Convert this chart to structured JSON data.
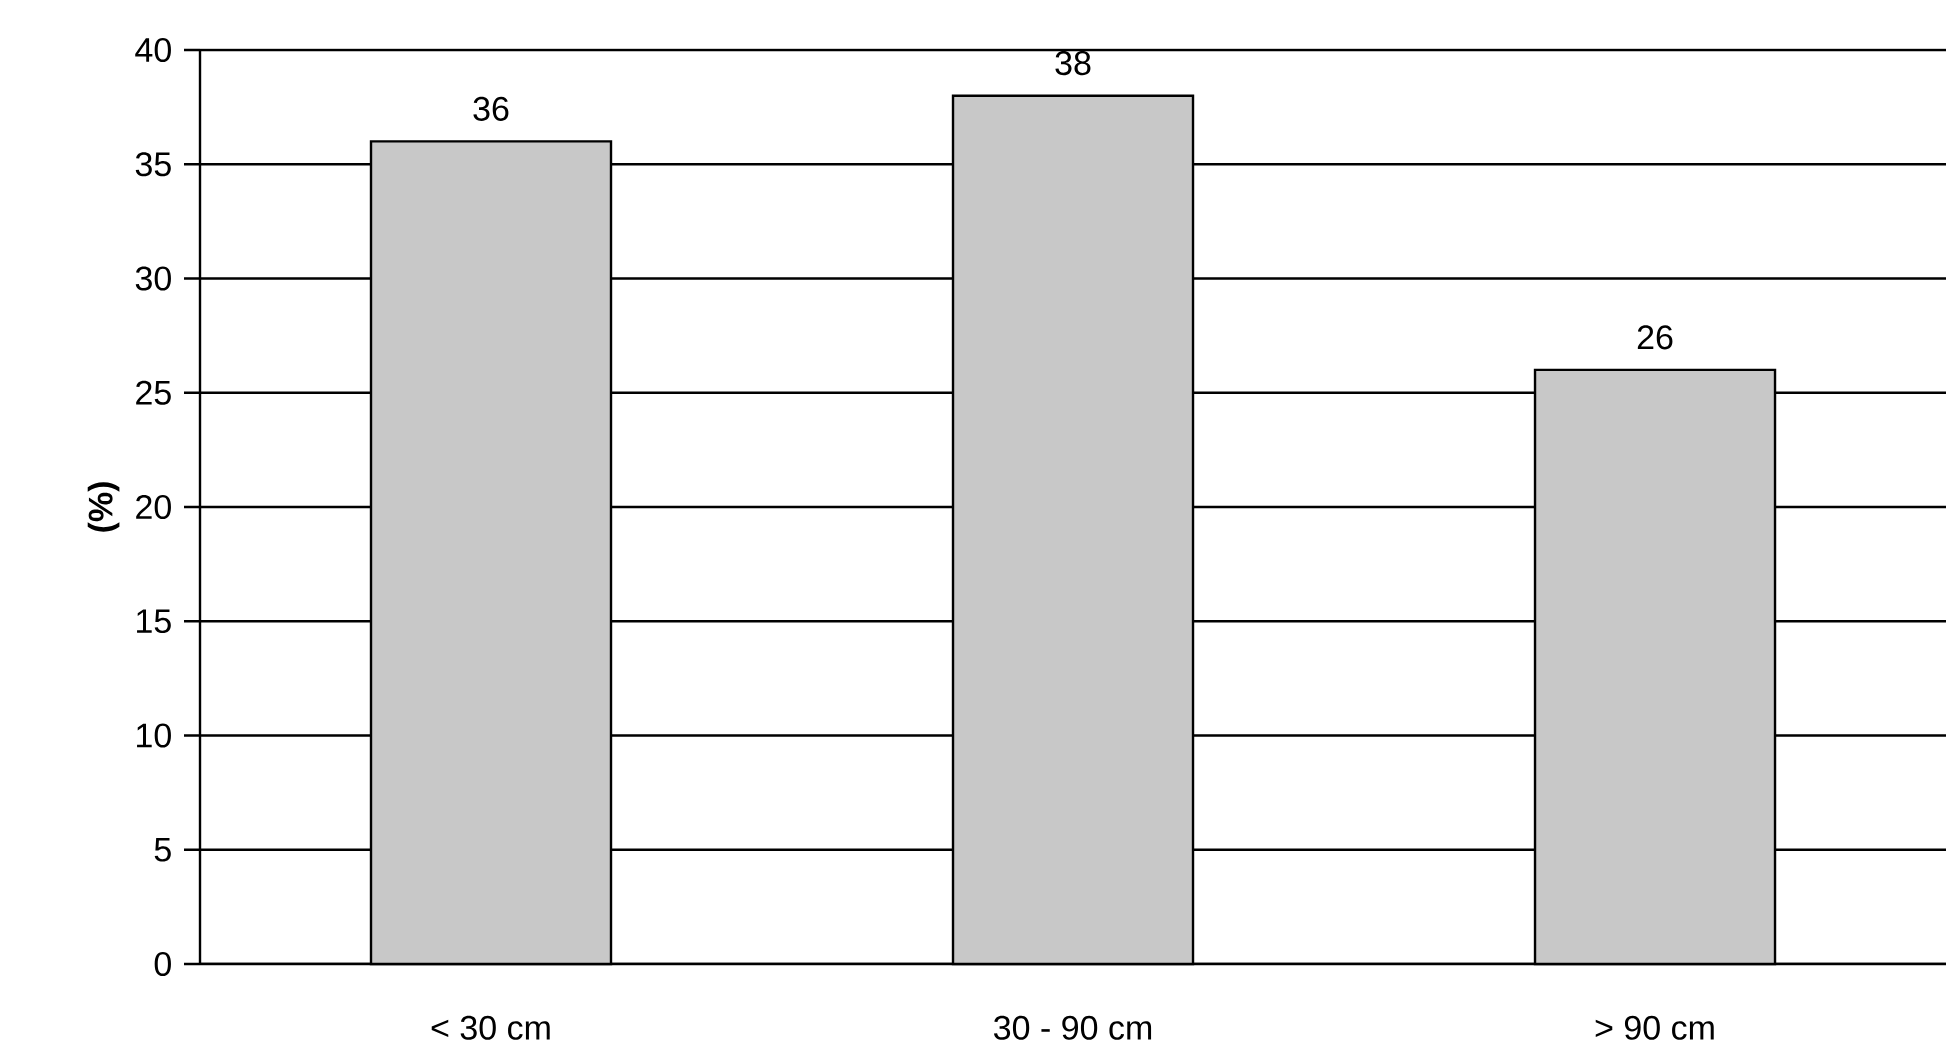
{
  "chart_data": {
    "type": "bar",
    "ylabel": "(%)",
    "categories": [
      "< 30 cm",
      "30 - 90 cm",
      "> 90 cm"
    ],
    "values": [
      36,
      38,
      26
    ],
    "color": "#c8c8c8",
    "ylim": [
      0,
      40
    ],
    "yticks": [
      0,
      5,
      10,
      15,
      20,
      25,
      30,
      35,
      40
    ],
    "grid": "y",
    "data_labels": true
  }
}
